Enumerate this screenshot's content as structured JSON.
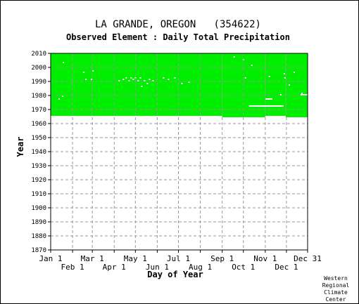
{
  "chart_data": {
    "type": "heatmap",
    "title": "LA GRANDE, OREGON   (354622)",
    "subtitle": "Observed Element : Daily Total Precipitation",
    "xlabel": "Day of Year",
    "ylabel": "Year",
    "xlim": [
      1,
      365
    ],
    "ylim": [
      1870,
      2010
    ],
    "y_ticks": [
      1870,
      1880,
      1890,
      1900,
      1910,
      1920,
      1930,
      1940,
      1950,
      1960,
      1970,
      1980,
      1990,
      2000,
      2010
    ],
    "x_ticks_upper": [
      {
        "label": "Jan 1",
        "day": 1
      },
      {
        "label": "Mar 1",
        "day": 60
      },
      {
        "label": "May 1",
        "day": 121
      },
      {
        "label": "Jul 1",
        "day": 182
      },
      {
        "label": "Sep 1",
        "day": 244
      },
      {
        "label": "Nov 1",
        "day": 305
      },
      {
        "label": "Dec 31",
        "day": 365
      }
    ],
    "x_ticks_lower": [
      {
        "label": "Feb 1",
        "day": 32
      },
      {
        "label": "Apr 1",
        "day": 91
      },
      {
        "label": "Jun 1",
        "day": 152
      },
      {
        "label": "Aug 1",
        "day": 213
      },
      {
        "label": "Oct 1",
        "day": 274
      },
      {
        "label": "Dec 1",
        "day": 335
      }
    ],
    "data_color": "#00ee00",
    "grid_color": "#999999",
    "coverage_start_segments": [
      {
        "from_day": 1,
        "to_day": 243,
        "start_year": 1965.5
      },
      {
        "from_day": 244,
        "to_day": 304,
        "start_year": 1964.5
      },
      {
        "from_day": 305,
        "to_day": 333,
        "start_year": 1965.5
      },
      {
        "from_day": 334,
        "to_day": 365,
        "start_year": 1964.5
      }
    ],
    "coverage_end_year": 2010,
    "missing_points": [
      {
        "day": 18,
        "year": 2003
      },
      {
        "day": 47,
        "year": 1996
      },
      {
        "day": 50,
        "year": 1991
      },
      {
        "day": 60,
        "year": 1997
      },
      {
        "day": 58,
        "year": 1991
      },
      {
        "day": 17,
        "year": 1979
      },
      {
        "day": 12,
        "year": 1977
      },
      {
        "day": 97,
        "year": 1990
      },
      {
        "day": 103,
        "year": 1991
      },
      {
        "day": 107,
        "year": 1992
      },
      {
        "day": 111,
        "year": 1990
      },
      {
        "day": 114,
        "year": 1992
      },
      {
        "day": 117,
        "year": 1991
      },
      {
        "day": 120,
        "year": 1992
      },
      {
        "day": 124,
        "year": 1990
      },
      {
        "day": 127,
        "year": 1992
      },
      {
        "day": 129,
        "year": 1986
      },
      {
        "day": 133,
        "year": 1990
      },
      {
        "day": 137,
        "year": 1988
      },
      {
        "day": 140,
        "year": 1991
      },
      {
        "day": 145,
        "year": 1990
      },
      {
        "day": 160,
        "year": 1992
      },
      {
        "day": 167,
        "year": 1991
      },
      {
        "day": 176,
        "year": 1992
      },
      {
        "day": 186,
        "year": 1988
      },
      {
        "day": 196,
        "year": 1989
      },
      {
        "day": 260,
        "year": 2007
      },
      {
        "day": 273,
        "year": 2005
      },
      {
        "day": 285,
        "year": 2001
      },
      {
        "day": 276,
        "year": 1992
      },
      {
        "day": 310,
        "year": 1993
      },
      {
        "day": 331,
        "year": 1995
      },
      {
        "day": 338,
        "year": 1987
      },
      {
        "day": 345,
        "year": 1996
      },
      {
        "day": 332,
        "year": 1992
      },
      {
        "day": 326,
        "year": 1980
      },
      {
        "day": 356,
        "year": 1981
      }
    ],
    "missing_segments": [
      {
        "from_day": 282,
        "to_day": 330,
        "year": 1972
      },
      {
        "from_day": 305,
        "to_day": 314,
        "year": 1977
      },
      {
        "from_day": 355,
        "to_day": 365,
        "year": 1980
      }
    ],
    "credit": [
      "Western",
      "Regional",
      "Climate",
      "Center"
    ]
  }
}
